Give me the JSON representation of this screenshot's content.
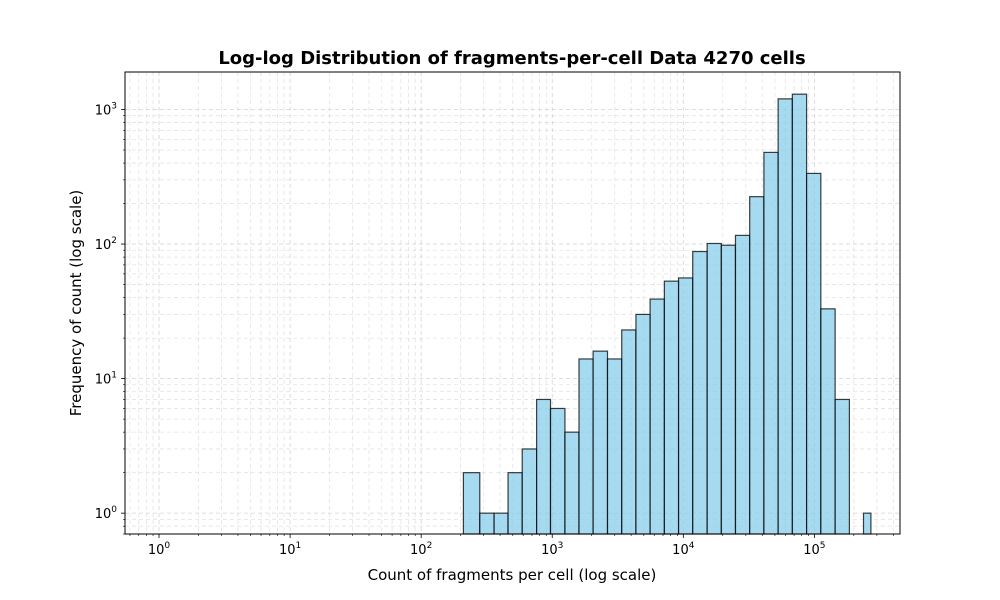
{
  "chart_data": {
    "type": "bar",
    "title": "Log-log Distribution of fragments-per-cell Data 4270 cells",
    "xlabel": "Count of fragments per cell (log scale)",
    "ylabel": "Frequency of count (log scale)",
    "x_scale": "log",
    "y_scale": "log",
    "xlim": [
      0.55,
      450000
    ],
    "ylim": [
      0.7,
      1900
    ],
    "grid": true,
    "x_ticks": [
      {
        "base": "10",
        "exp": "0",
        "value": 1
      },
      {
        "base": "10",
        "exp": "1",
        "value": 10
      },
      {
        "base": "10",
        "exp": "2",
        "value": 100
      },
      {
        "base": "10",
        "exp": "3",
        "value": 1000
      },
      {
        "base": "10",
        "exp": "4",
        "value": 10000
      },
      {
        "base": "10",
        "exp": "5",
        "value": 100000
      }
    ],
    "y_ticks": [
      {
        "base": "10",
        "exp": "0",
        "value": 1
      },
      {
        "base": "10",
        "exp": "1",
        "value": 10
      },
      {
        "base": "10",
        "exp": "2",
        "value": 100
      },
      {
        "base": "10",
        "exp": "3",
        "value": 1000
      }
    ],
    "bar_color": "#87CEEB",
    "bar_edge_color": "#000000",
    "bins": [
      {
        "x0": 210,
        "x1": 280,
        "count": 2
      },
      {
        "x0": 280,
        "x1": 360,
        "count": 1
      },
      {
        "x0": 360,
        "x1": 460,
        "count": 1
      },
      {
        "x0": 460,
        "x1": 590,
        "count": 2
      },
      {
        "x0": 590,
        "x1": 760,
        "count": 3
      },
      {
        "x0": 760,
        "x1": 970,
        "count": 7
      },
      {
        "x0": 970,
        "x1": 1250,
        "count": 6
      },
      {
        "x0": 1250,
        "x1": 1600,
        "count": 4
      },
      {
        "x0": 1600,
        "x1": 2050,
        "count": 14
      },
      {
        "x0": 2050,
        "x1": 2640,
        "count": 16
      },
      {
        "x0": 2640,
        "x1": 3390,
        "count": 14
      },
      {
        "x0": 3390,
        "x1": 4350,
        "count": 23
      },
      {
        "x0": 4350,
        "x1": 5580,
        "count": 30
      },
      {
        "x0": 5580,
        "x1": 7170,
        "count": 39
      },
      {
        "x0": 7170,
        "x1": 9200,
        "count": 53
      },
      {
        "x0": 9200,
        "x1": 11800,
        "count": 56
      },
      {
        "x0": 11800,
        "x1": 15200,
        "count": 88
      },
      {
        "x0": 15200,
        "x1": 19500,
        "count": 101
      },
      {
        "x0": 19500,
        "x1": 25000,
        "count": 98
      },
      {
        "x0": 25000,
        "x1": 32100,
        "count": 116
      },
      {
        "x0": 32100,
        "x1": 41200,
        "count": 225
      },
      {
        "x0": 41200,
        "x1": 52900,
        "count": 480
      },
      {
        "x0": 52900,
        "x1": 67900,
        "count": 1200
      },
      {
        "x0": 67900,
        "x1": 87200,
        "count": 1300
      },
      {
        "x0": 87200,
        "x1": 112000,
        "count": 335
      },
      {
        "x0": 112000,
        "x1": 144000,
        "count": 33
      },
      {
        "x0": 144000,
        "x1": 185000,
        "count": 7
      },
      {
        "x0": 185000,
        "x1": 237000,
        "count": 0
      },
      {
        "x0": 237000,
        "x1": 270000,
        "count": 1
      }
    ]
  }
}
